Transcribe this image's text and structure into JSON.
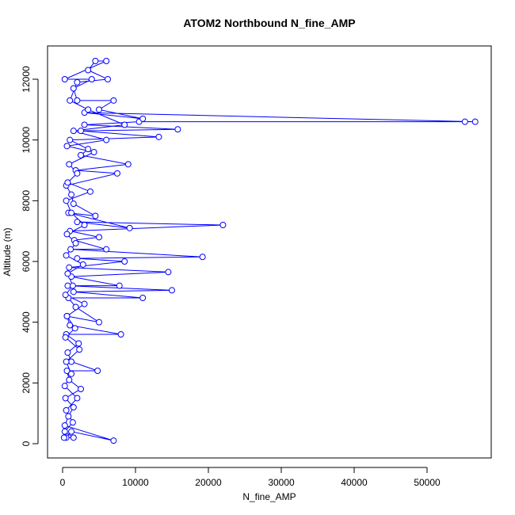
{
  "chart_data": {
    "type": "line",
    "title": "ATOM2 Northbound N_fine_AMP",
    "x_label": "N_fine_AMP",
    "y_label": "Altitude (m)",
    "color": "#0000ff",
    "markers": true,
    "x": [
      500,
      1200,
      7000,
      300,
      800,
      1500,
      400,
      2500,
      900,
      600,
      4800,
      1200,
      700,
      2200,
      500,
      8000,
      1000,
      600,
      5000,
      1800,
      800,
      11000,
      1500,
      15000,
      700,
      7800,
      1200,
      14500,
      900,
      8500,
      2000,
      19200,
      1100,
      6000,
      1600,
      5000,
      1000,
      22000,
      2000,
      9200,
      800,
      4500,
      1500,
      1200,
      500,
      7500,
      1800,
      9000,
      2500,
      3500,
      1000,
      13200,
      2500,
      15800,
      3000,
      10500,
      55200,
      56600,
      3000,
      11000,
      5000,
      7000,
      2000,
      1500,
      4000,
      300,
      6000,
      4500,
      3500,
      6200,
      2000,
      1000,
      3500,
      8500,
      1500,
      6000,
      600,
      4300,
      900,
      2000,
      700,
      3800,
      500,
      1200,
      3000,
      600,
      1800,
      500,
      2800,
      700,
      1400,
      400,
      3000,
      600,
      1700,
      400,
      2300,
      500,
      1200,
      300,
      2000,
      500,
      1400,
      300,
      1500,
      200
    ],
    "values": [
      200,
      400,
      100,
      600,
      900,
      1200,
      1500,
      1800,
      2100,
      2400,
      2400,
      2700,
      3000,
      3300,
      3600,
      3600,
      3900,
      4200,
      4000,
      4500,
      4800,
      4800,
      5000,
      5050,
      5200,
      5200,
      5500,
      5650,
      5800,
      6000,
      6100,
      6150,
      6400,
      6400,
      6700,
      6800,
      7000,
      7200,
      7300,
      7100,
      7600,
      7500,
      7900,
      8200,
      8500,
      8900,
      9000,
      9200,
      9500,
      9700,
      10000,
      10100,
      10300,
      10350,
      10500,
      10600,
      10600,
      10600,
      10900,
      10700,
      11000,
      11300,
      11300,
      11700,
      12000,
      12000,
      12600,
      12600,
      12300,
      12000,
      11900,
      11300,
      11000,
      10500,
      10300,
      10000,
      9800,
      9600,
      9200,
      8900,
      8600,
      8300,
      8000,
      7600,
      7200,
      6900,
      6600,
      6200,
      5900,
      5600,
      5200,
      4900,
      4600,
      4200,
      3800,
      3500,
      3100,
      2700,
      2300,
      1900,
      1500,
      1100,
      700,
      400,
      200,
      200
    ],
    "xlim": [
      -2065,
      58804
    ],
    "ylim": [
      -470,
      13096
    ],
    "xticks": [
      0,
      10000,
      20000,
      30000,
      40000,
      50000
    ],
    "yticks": [
      0,
      2000,
      4000,
      6000,
      8000,
      10000,
      12000
    ]
  }
}
